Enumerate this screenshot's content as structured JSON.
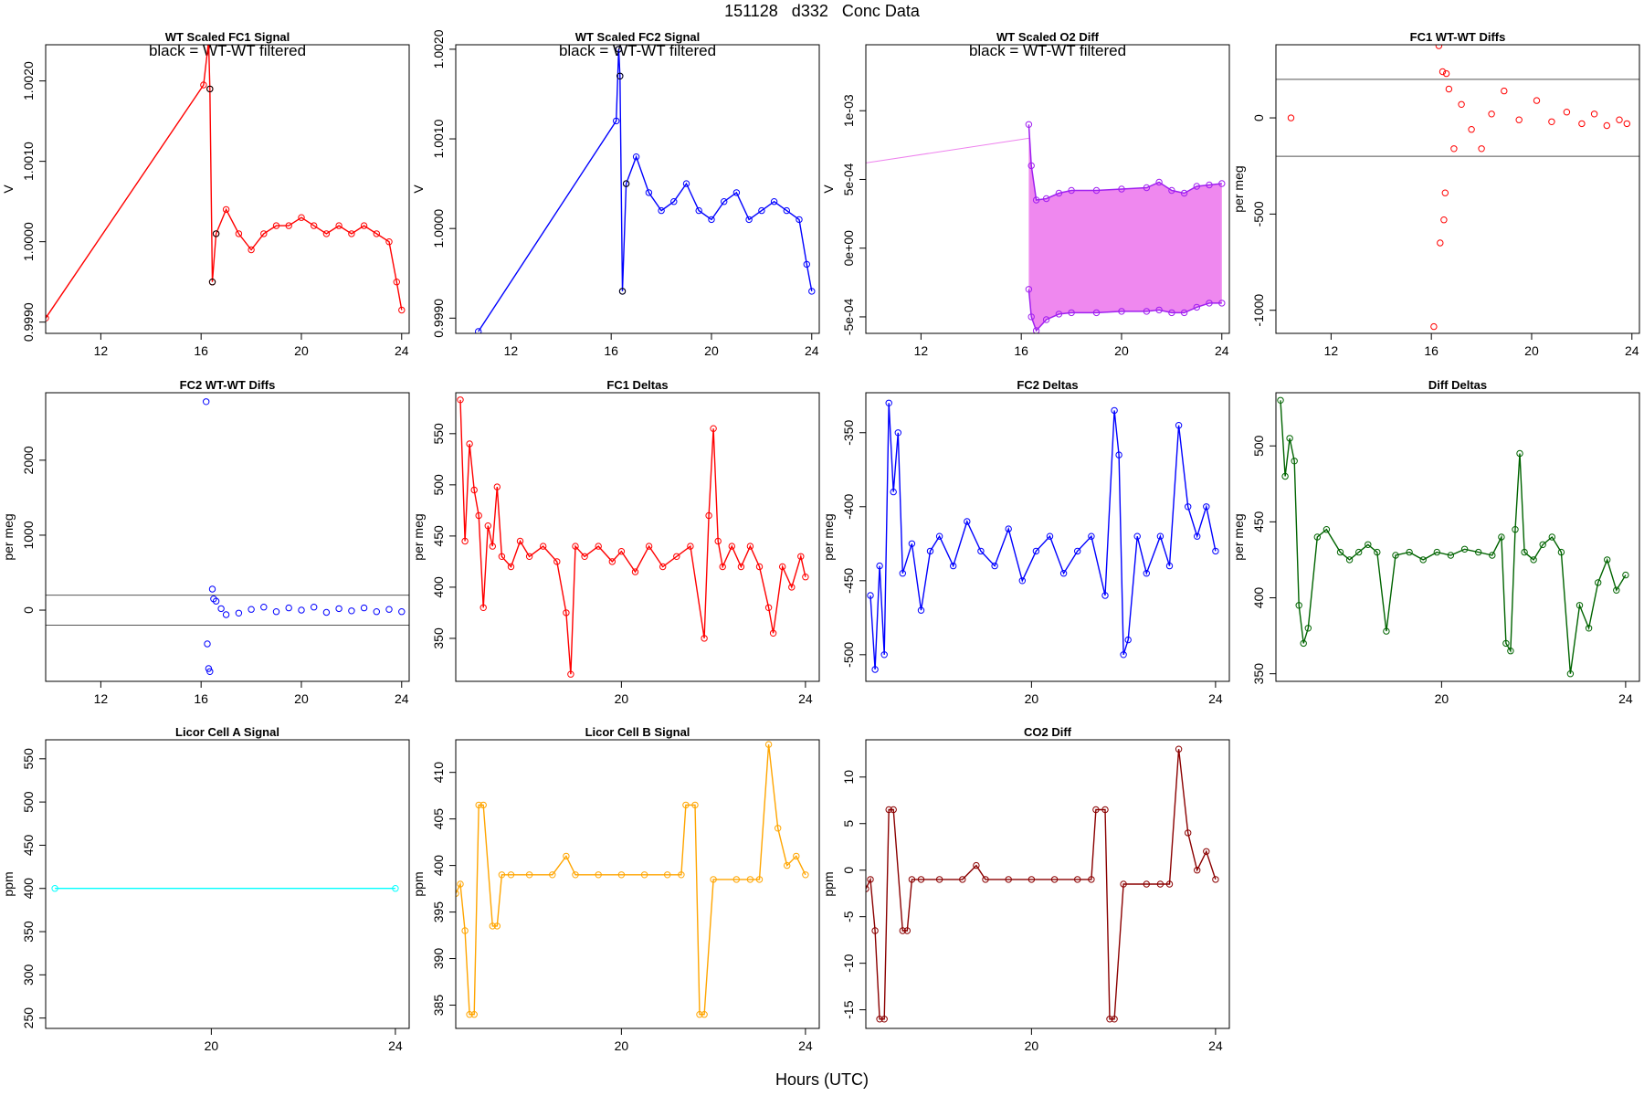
{
  "figure": {
    "title": "151128   d332   Conc Data",
    "xlabel": "Hours (UTC)"
  },
  "chart_data": [
    {
      "type": "line",
      "title": "WT Scaled FC1 Signal",
      "subtitle": "black = WT-WT filtered",
      "ylabel": "V",
      "color": "#FF0000",
      "accent": "#000000",
      "xlim": [
        9.8,
        24.3
      ],
      "ylim": [
        0.99886,
        1.00245
      ],
      "xticks": [
        12,
        16,
        20,
        24
      ],
      "xtick_labels": [
        "12",
        "16",
        "20",
        "24"
      ],
      "yticks": [
        0.999,
        1.0,
        1.001,
        1.002
      ],
      "ytick_labels": [
        "0.9990",
        "1.0000",
        "1.0010",
        "1.0020"
      ],
      "series": [
        {
          "x": [
            9.8,
            16.1,
            16.3,
            16.35,
            16.45,
            16.6,
            17.0,
            17.5,
            18.0,
            18.5,
            19.0,
            19.5,
            20.0,
            20.5,
            21.0,
            21.5,
            22.0,
            22.5,
            23.0,
            23.5,
            23.8,
            24.0
          ],
          "y": [
            0.99905,
            1.00195,
            1.0025,
            1.0019,
            0.9995,
            1.0001,
            1.0004,
            1.0001,
            0.9999,
            1.0001,
            1.0002,
            1.0002,
            1.0003,
            1.0002,
            1.0001,
            1.0002,
            1.0001,
            1.0002,
            1.0001,
            1.0,
            0.9995,
            0.99915
          ]
        }
      ]
    },
    {
      "type": "line",
      "title": "WT Scaled FC2 Signal",
      "subtitle": "black = WT-WT filtered",
      "ylabel": "V",
      "color": "#0000FF",
      "accent": "#000000",
      "xlim": [
        9.8,
        24.3
      ],
      "ylim": [
        0.99883,
        1.00205
      ],
      "xticks": [
        12,
        16,
        20,
        24
      ],
      "xtick_labels": [
        "12",
        "16",
        "20",
        "24"
      ],
      "yticks": [
        0.999,
        1.0,
        1.001,
        1.002
      ],
      "ytick_labels": [
        "0.9990",
        "1.0000",
        "1.0010",
        "1.0020"
      ],
      "series": [
        {
          "x": [
            10.7,
            16.2,
            16.3,
            16.35,
            16.45,
            16.6,
            17.0,
            17.5,
            18.0,
            18.5,
            19.0,
            19.5,
            20.0,
            20.5,
            21.0,
            21.5,
            22.0,
            22.5,
            23.0,
            23.5,
            23.8,
            24.0
          ],
          "y": [
            0.99885,
            1.0012,
            1.002,
            1.0017,
            0.9993,
            1.0005,
            1.0008,
            1.0004,
            1.0002,
            1.0003,
            1.0005,
            1.0002,
            1.0001,
            1.0003,
            1.0004,
            1.0001,
            1.0002,
            1.0003,
            1.0002,
            1.0001,
            0.9996,
            0.9993
          ]
        }
      ]
    },
    {
      "type": "area",
      "title": "WT Scaled O2 Diff",
      "subtitle": "black = WT-WT filtered",
      "ylabel": "V",
      "color": "#EE82EE",
      "accent": "#A020F0",
      "xlim": [
        9.8,
        24.3
      ],
      "ylim": [
        -0.00062,
        0.00148
      ],
      "xticks": [
        12,
        16,
        20,
        24
      ],
      "xtick_labels": [
        "12",
        "16",
        "20",
        "24"
      ],
      "yticks": [
        -0.0005,
        0.0,
        0.0005,
        0.001
      ],
      "ytick_labels": [
        "-5e-04",
        "0e+00",
        "5e-04",
        "1e-03"
      ],
      "series": [
        {
          "name": "upper",
          "x": [
            16.3,
            16.4,
            16.6,
            17.0,
            17.5,
            18.0,
            19.0,
            20.0,
            21.0,
            21.5,
            22.0,
            22.5,
            23.0,
            23.5,
            24.0
          ],
          "y": [
            0.0009,
            0.0006,
            0.00035,
            0.00036,
            0.0004,
            0.00042,
            0.00042,
            0.00043,
            0.00044,
            0.00048,
            0.00042,
            0.0004,
            0.00045,
            0.00046,
            0.00047
          ]
        },
        {
          "name": "lower",
          "x": [
            16.3,
            16.4,
            16.6,
            17.0,
            17.5,
            18.0,
            19.0,
            20.0,
            21.0,
            21.5,
            22.0,
            22.5,
            23.0,
            23.5,
            24.0
          ],
          "y": [
            -0.0003,
            -0.0005,
            -0.0006,
            -0.00052,
            -0.00048,
            -0.00047,
            -0.00047,
            -0.00046,
            -0.00046,
            -0.00045,
            -0.00047,
            -0.00047,
            -0.00043,
            -0.0004,
            -0.0004
          ]
        }
      ]
    },
    {
      "type": "scatter",
      "title": "FC1 WT-WT Diffs",
      "ylabel": "per meg",
      "color": "#FF0000",
      "xlim": [
        9.8,
        24.3
      ],
      "ylim": [
        -1120,
        380
      ],
      "xticks": [
        12,
        16,
        20,
        24
      ],
      "xtick_labels": [
        "12",
        "16",
        "20",
        "24"
      ],
      "yticks": [
        -1000,
        -500,
        0
      ],
      "ytick_labels": [
        "-1000",
        "-500",
        "0"
      ],
      "hlines": [
        200,
        -200
      ],
      "series": [
        {
          "x": [
            10.4,
            16.1,
            16.3,
            16.35,
            16.45,
            16.5,
            16.55,
            16.6,
            16.7,
            16.9,
            17.2,
            17.6,
            18.0,
            18.4,
            18.9,
            19.5,
            20.2,
            20.8,
            21.4,
            22.0,
            22.5,
            23.0,
            23.5,
            23.8
          ],
          "y": [
            0,
            -1085,
            375,
            -650,
            240,
            -530,
            -390,
            230,
            150,
            -160,
            70,
            -60,
            -160,
            20,
            140,
            -10,
            90,
            -20,
            30,
            -30,
            20,
            -40,
            -10,
            -30
          ]
        }
      ]
    },
    {
      "type": "scatter",
      "title": "FC2 WT-WT Diffs",
      "ylabel": "per meg",
      "color": "#0000FF",
      "xlim": [
        9.8,
        24.3
      ],
      "ylim": [
        -950,
        2900
      ],
      "xticks": [
        12,
        16,
        20,
        24
      ],
      "xtick_labels": [
        "12",
        "16",
        "20",
        "24"
      ],
      "yticks": [
        0,
        1000,
        2000
      ],
      "ytick_labels": [
        "0",
        "1000",
        "2000"
      ],
      "hlines": [
        200,
        -200
      ],
      "series": [
        {
          "x": [
            16.2,
            16.25,
            16.3,
            16.35,
            16.45,
            16.5,
            16.6,
            16.8,
            17.0,
            17.5,
            18.0,
            18.5,
            19.0,
            19.5,
            20.0,
            20.5,
            21.0,
            21.5,
            22.0,
            22.5,
            23.0,
            23.5,
            24.0
          ],
          "y": [
            2780,
            -450,
            -780,
            -820,
            280,
            150,
            120,
            20,
            -60,
            -40,
            10,
            40,
            -20,
            30,
            0,
            40,
            -30,
            20,
            -10,
            30,
            -20,
            10,
            -20
          ]
        }
      ]
    },
    {
      "type": "line",
      "title": "FC1 Deltas",
      "ylabel": "per meg",
      "color": "#FF0000",
      "xlim": [
        16.4,
        24.3
      ],
      "ylim": [
        308,
        590
      ],
      "xticks": [
        20,
        24
      ],
      "xtick_labels": [
        "20",
        "24"
      ],
      "yticks": [
        350,
        400,
        450,
        500,
        550
      ],
      "ytick_labels": [
        "350",
        "400",
        "450",
        "500",
        "550"
      ],
      "series": [
        {
          "x": [
            16.5,
            16.6,
            16.7,
            16.8,
            16.9,
            17.0,
            17.1,
            17.2,
            17.3,
            17.4,
            17.6,
            17.8,
            18.0,
            18.3,
            18.6,
            18.8,
            18.9,
            19.0,
            19.2,
            19.5,
            19.8,
            20.0,
            20.3,
            20.6,
            20.9,
            21.2,
            21.5,
            21.8,
            21.9,
            22.0,
            22.1,
            22.2,
            22.4,
            22.6,
            22.8,
            23.0,
            23.2,
            23.3,
            23.5,
            23.7,
            23.9,
            24.0
          ],
          "y": [
            583,
            445,
            540,
            495,
            470,
            380,
            460,
            440,
            498,
            430,
            420,
            445,
            430,
            440,
            425,
            375,
            315,
            440,
            430,
            440,
            425,
            435,
            415,
            440,
            420,
            430,
            440,
            350,
            470,
            555,
            445,
            420,
            440,
            420,
            440,
            420,
            380,
            355,
            420,
            400,
            430,
            410
          ]
        }
      ]
    },
    {
      "type": "line",
      "title": "FC2 Deltas",
      "ylabel": "per meg",
      "color": "#0000FF",
      "xlim": [
        16.4,
        24.3
      ],
      "ylim": [
        -518,
        -323
      ],
      "xticks": [
        20,
        24
      ],
      "xtick_labels": [
        "20",
        "24"
      ],
      "yticks": [
        -500,
        -450,
        -400,
        -350
      ],
      "ytick_labels": [
        "-500",
        "-450",
        "-400",
        "-350"
      ],
      "series": [
        {
          "x": [
            16.5,
            16.6,
            16.7,
            16.8,
            16.9,
            17.0,
            17.1,
            17.2,
            17.4,
            17.6,
            17.8,
            18.0,
            18.3,
            18.6,
            18.9,
            19.2,
            19.5,
            19.8,
            20.1,
            20.4,
            20.7,
            21.0,
            21.3,
            21.6,
            21.8,
            21.9,
            22.0,
            22.1,
            22.3,
            22.5,
            22.8,
            23.0,
            23.2,
            23.4,
            23.6,
            23.8,
            24.0
          ],
          "y": [
            -460,
            -510,
            -440,
            -500,
            -330,
            -390,
            -350,
            -445,
            -425,
            -470,
            -430,
            -420,
            -440,
            -410,
            -430,
            -440,
            -415,
            -450,
            -430,
            -420,
            -445,
            -430,
            -420,
            -460,
            -335,
            -365,
            -500,
            -490,
            -420,
            -445,
            -420,
            -440,
            -345,
            -400,
            -420,
            -400,
            -430
          ]
        }
      ]
    },
    {
      "type": "line",
      "title": "Diff Deltas",
      "ylabel": "per meg",
      "color": "#006400",
      "xlim": [
        16.4,
        24.3
      ],
      "ylim": [
        345,
        535
      ],
      "xticks": [
        20,
        24
      ],
      "xtick_labels": [
        "20",
        "24"
      ],
      "yticks": [
        350,
        400,
        450,
        500
      ],
      "ytick_labels": [
        "350",
        "400",
        "450",
        "500"
      ],
      "series": [
        {
          "x": [
            16.5,
            16.6,
            16.7,
            16.8,
            16.9,
            17.0,
            17.1,
            17.3,
            17.5,
            17.8,
            18.0,
            18.2,
            18.4,
            18.6,
            18.8,
            19.0,
            19.3,
            19.6,
            19.9,
            20.2,
            20.5,
            20.8,
            21.1,
            21.3,
            21.4,
            21.5,
            21.6,
            21.7,
            21.8,
            22.0,
            22.2,
            22.4,
            22.6,
            22.8,
            23.0,
            23.2,
            23.4,
            23.6,
            23.8,
            24.0
          ],
          "y": [
            530,
            480,
            505,
            490,
            395,
            370,
            380,
            440,
            445,
            430,
            425,
            430,
            435,
            430,
            378,
            428,
            430,
            425,
            430,
            428,
            432,
            430,
            428,
            440,
            370,
            365,
            445,
            495,
            430,
            425,
            435,
            440,
            430,
            350,
            395,
            380,
            410,
            425,
            405,
            415
          ]
        }
      ]
    },
    {
      "type": "line",
      "title": "Licor Cell A Signal",
      "ylabel": "ppm",
      "color": "#00FFFF",
      "xlim": [
        16.4,
        24.3
      ],
      "ylim": [
        238,
        572
      ],
      "xticks": [
        20,
        24
      ],
      "xtick_labels": [
        "20",
        "24"
      ],
      "yticks": [
        250,
        300,
        350,
        400,
        450,
        500,
        550
      ],
      "ytick_labels": [
        "250",
        "300",
        "350",
        "400",
        "450",
        "500",
        "550"
      ],
      "series": [
        {
          "x": [
            16.6,
            24.0
          ],
          "y": [
            400,
            400
          ]
        }
      ]
    },
    {
      "type": "line",
      "title": "Licor Cell B Signal",
      "ylabel": "ppm",
      "color": "#FFA500",
      "xlim": [
        16.4,
        24.3
      ],
      "ylim": [
        382.5,
        413.5
      ],
      "xticks": [
        20,
        24
      ],
      "xtick_labels": [
        "20",
        "24"
      ],
      "yticks": [
        385,
        390,
        395,
        400,
        405,
        410
      ],
      "ytick_labels": [
        "385",
        "390",
        "395",
        "400",
        "405",
        "410"
      ],
      "series": [
        {
          "x": [
            16.4,
            16.5,
            16.6,
            16.7,
            16.8,
            16.9,
            17.0,
            17.2,
            17.3,
            17.4,
            17.6,
            18.0,
            18.5,
            18.8,
            19.0,
            19.5,
            20.0,
            20.5,
            21.0,
            21.3,
            21.4,
            21.6,
            21.7,
            21.8,
            22.0,
            22.5,
            22.8,
            23.0,
            23.2,
            23.4,
            23.6,
            23.8,
            24.0
          ],
          "y": [
            397,
            398,
            393,
            384,
            384,
            406.5,
            406.5,
            393.5,
            393.5,
            399,
            399,
            399,
            399,
            401,
            399,
            399,
            399,
            399,
            399,
            399,
            406.5,
            406.5,
            384,
            384,
            398.5,
            398.5,
            398.5,
            398.5,
            413,
            404,
            400,
            401,
            399
          ]
        }
      ]
    },
    {
      "type": "line",
      "title": "CO2 Diff",
      "ylabel": "ppm",
      "color": "#8B0000",
      "xlim": [
        16.4,
        24.3
      ],
      "ylim": [
        -17,
        14
      ],
      "xticks": [
        20,
        24
      ],
      "xtick_labels": [
        "20",
        "24"
      ],
      "yticks": [
        -15,
        -10,
        -5,
        0,
        5,
        10
      ],
      "ytick_labels": [
        "-15",
        "-10",
        "-5",
        "0",
        "5",
        "10"
      ],
      "series": [
        {
          "x": [
            16.4,
            16.5,
            16.6,
            16.7,
            16.8,
            16.9,
            17.0,
            17.2,
            17.3,
            17.4,
            17.6,
            18.0,
            18.5,
            18.8,
            19.0,
            19.5,
            20.0,
            20.5,
            21.0,
            21.3,
            21.4,
            21.6,
            21.7,
            21.8,
            22.0,
            22.5,
            22.8,
            23.0,
            23.2,
            23.4,
            23.6,
            23.8,
            24.0
          ],
          "y": [
            -2,
            -1,
            -6.5,
            -16,
            -16,
            6.5,
            6.5,
            -6.5,
            -6.5,
            -1,
            -1,
            -1,
            -1,
            0.5,
            -1,
            -1,
            -1,
            -1,
            -1,
            -1,
            6.5,
            6.5,
            -16,
            -16,
            -1.5,
            -1.5,
            -1.5,
            -1.5,
            13,
            4,
            0,
            2,
            -1
          ]
        }
      ]
    }
  ]
}
